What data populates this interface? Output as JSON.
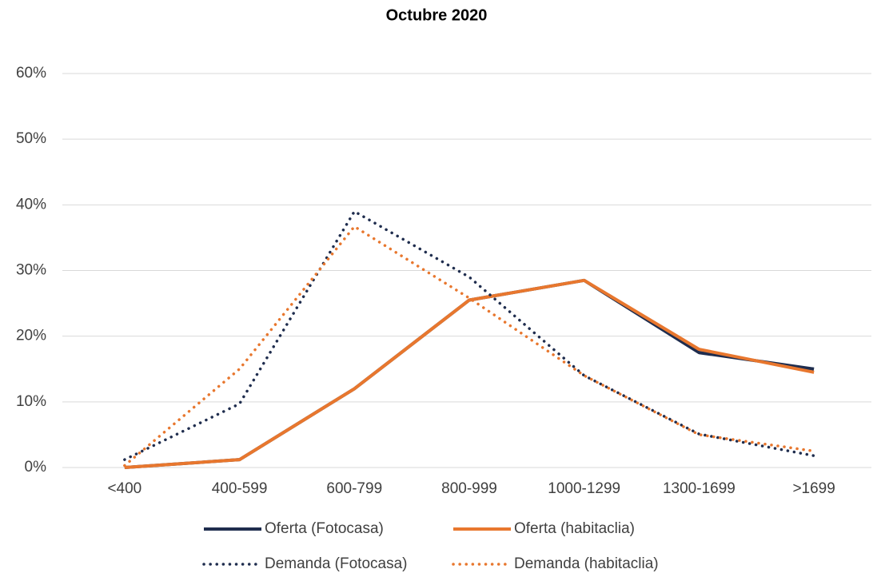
{
  "chart_data": {
    "type": "line",
    "title": "Octubre 2020",
    "categories": [
      "<400",
      "400-599",
      "600-799",
      "800-999",
      "1000-1299",
      "1300-1699",
      ">1699"
    ],
    "series": [
      {
        "name": "Oferta (Fotocasa)",
        "color": "#1f2d4e",
        "style": "solid",
        "values": [
          0,
          1.2,
          12,
          25.5,
          28.5,
          17.5,
          15
        ]
      },
      {
        "name": "Oferta (habitaclia)",
        "color": "#e8772e",
        "style": "solid",
        "values": [
          0,
          1.2,
          12,
          25.5,
          28.5,
          18,
          14.5
        ]
      },
      {
        "name": "Demanda (Fotocasa)",
        "color": "#1f2d4e",
        "style": "dotted",
        "values": [
          1.2,
          9.7,
          39,
          29,
          14,
          5.1,
          1.8
        ]
      },
      {
        "name": "Demanda (habitaclia)",
        "color": "#e8772e",
        "style": "dotted",
        "values": [
          0.3,
          15,
          36.7,
          25.8,
          14,
          5,
          2.5
        ]
      }
    ],
    "ylim": [
      0,
      60
    ],
    "yticks": [
      {
        "value": 0,
        "label": "0%"
      },
      {
        "value": 10,
        "label": "10%"
      },
      {
        "value": 20,
        "label": "20%"
      },
      {
        "value": 30,
        "label": "30%"
      },
      {
        "value": 40,
        "label": "40%"
      },
      {
        "value": 50,
        "label": "50%"
      },
      {
        "value": 60,
        "label": "60%"
      }
    ],
    "grid": true,
    "legend": "bottom"
  }
}
